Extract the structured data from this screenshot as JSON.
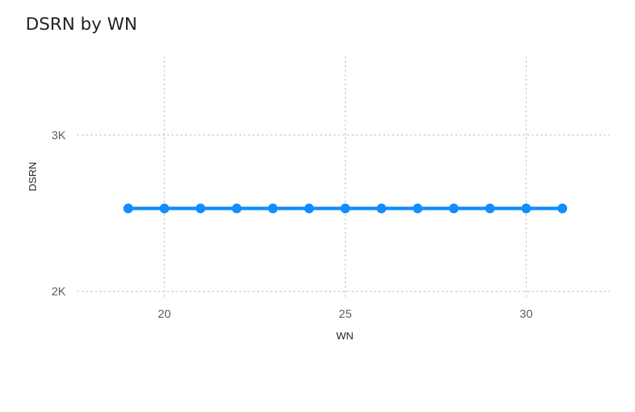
{
  "chart_data": {
    "type": "line",
    "title": "DSRN by WN",
    "xlabel": "WN",
    "ylabel": "DSRN",
    "x": [
      19,
      20,
      21,
      22,
      23,
      24,
      25,
      26,
      27,
      28,
      29,
      30,
      31
    ],
    "series": [
      {
        "values": [
          2530,
          2530,
          2530,
          2530,
          2530,
          2530,
          2530,
          2530,
          2530,
          2530,
          2530,
          2530,
          2530
        ]
      }
    ],
    "xlim": [
      17.6,
      32.3
    ],
    "ylim": [
      1950,
      3500
    ],
    "xticks": [
      20,
      25,
      30
    ],
    "xtick_labels": [
      "20",
      "25",
      "30"
    ],
    "yticks": [
      2000,
      3000
    ],
    "ytick_labels": [
      "2K",
      "3K"
    ],
    "grid": true,
    "grid_style": "dotted",
    "color": "#118DFF"
  }
}
